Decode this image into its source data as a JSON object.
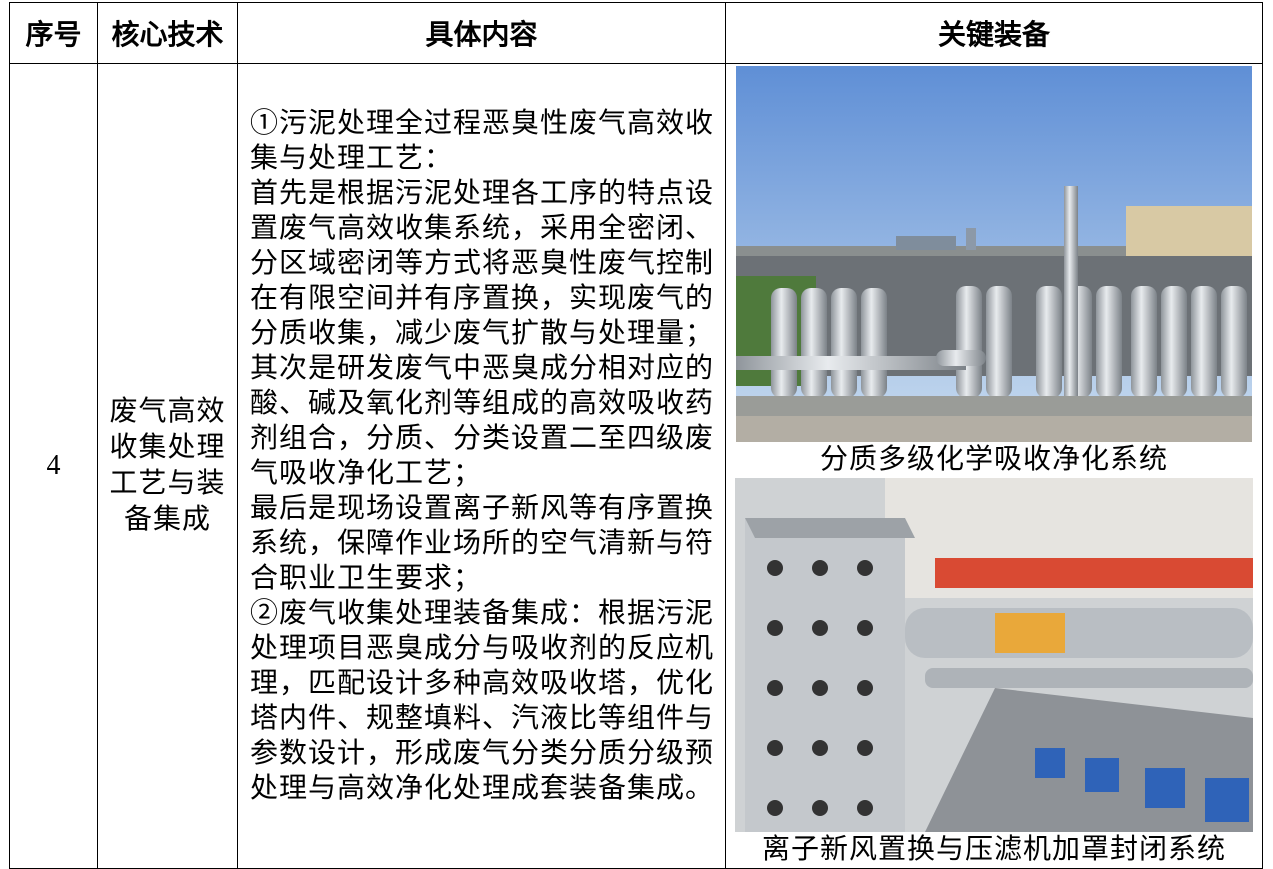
{
  "table": {
    "headers": [
      "序号",
      "核心技术",
      "具体内容",
      "关键装备"
    ],
    "rows": [
      {
        "index": "4",
        "technology": "废气高效收集处理工艺与装备集成",
        "content": [
          "①污泥处理全过程恶臭性废气高效收集与处理工艺：",
          "首先是根据污泥处理各工序的特点设置废气高效收集系统，采用全密闭、分区域密闭等方式将恶臭性废气控制在有限空间并有序置换，实现废气的分质收集，减少废气扩散与处理量；",
          "其次是研发废气中恶臭成分相对应的酸、碱及氧化剂等组成的高效吸收药剂组合，分质、分类设置二至四级废气吸收净化工艺；",
          "最后是现场设置离子新风等有序置换系统，保障作业场所的空气清新与符合职业卫生要求；",
          "②废气收集处理装备集成：根据污泥处理项目恶臭成分与吸收剂的反应机理，匹配设计多种高效吸收塔，优化塔内件、规整填料、汽液比等组件与参数设计，形成废气分类分质分级预处理与高效净化处理成套装备集成。"
        ],
        "equipment": [
          "分质多级化学吸收净化系统",
          "离子新风置换与压滤机加罩封闭系统"
        ]
      }
    ]
  }
}
